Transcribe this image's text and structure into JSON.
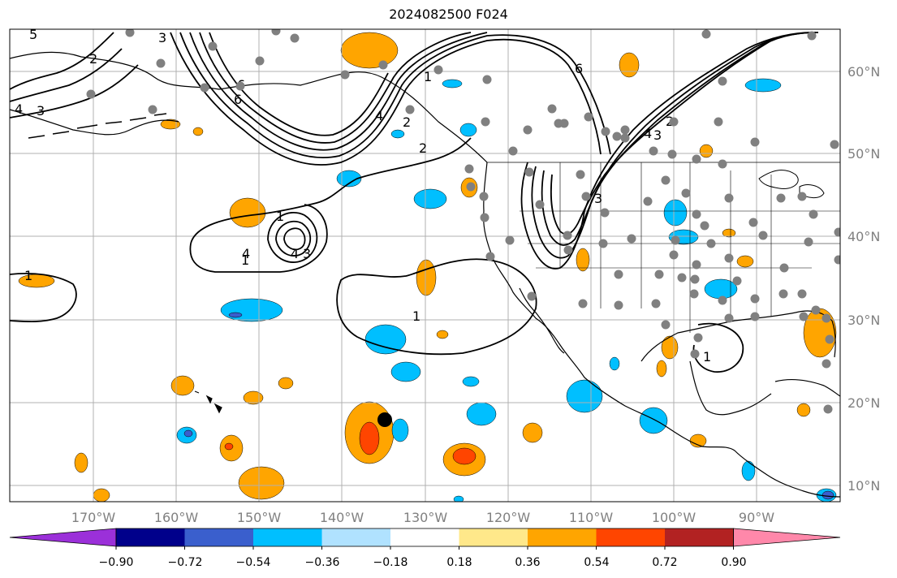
{
  "title": "2024082500 F024",
  "map": {
    "lat_ticks": [
      "60°N",
      "50°N",
      "40°N",
      "30°N",
      "20°N",
      "10°N"
    ],
    "lon_ticks": [
      "170°W",
      "160°W",
      "150°W",
      "140°W",
      "130°W",
      "120°W",
      "110°W",
      "100°W",
      "90°W"
    ],
    "contour_labels": [
      "5",
      "2",
      "3",
      "4",
      "3",
      "6",
      "6",
      "1",
      "6",
      "4",
      "2",
      "4",
      "2",
      "3",
      "2",
      "1",
      "4",
      "3",
      "1",
      "1",
      "1",
      "1",
      "4",
      "3"
    ],
    "marker": "black-dot"
  },
  "colorbar": {
    "colors": [
      "#9b30d9",
      "#00008b",
      "#3a5fcd",
      "#00bfff",
      "#b0e2ff",
      "#ffffff",
      "#ffe88a",
      "#ffa500",
      "#ff4500",
      "#b22222",
      "#ff88aa"
    ],
    "labels": [
      "−0.90",
      "−0.72",
      "−0.54",
      "−0.36",
      "−0.18",
      "0.18",
      "0.36",
      "0.54",
      "0.72",
      "0.90"
    ]
  },
  "palette": {
    "orange": "#ffa500",
    "redorange": "#ff4500",
    "skyblue": "#00bfff",
    "blue": "#3a5fcd",
    "station": "#808080",
    "grid": "#b0b0b0"
  }
}
